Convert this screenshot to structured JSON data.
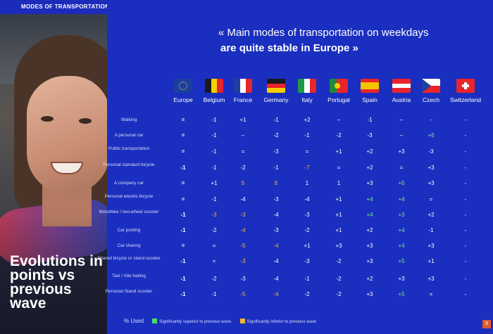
{
  "banner": "MODES OF TRANSPORTATION USED ON WEEKDAYS %",
  "headline": {
    "line1": "« Main modes of transportation on weekdays",
    "line2": "are quite stable in Europe »"
  },
  "side_title": "Evolutions in points vs previous wave",
  "countries": [
    "Europe",
    "Belgium",
    "France",
    "Germany",
    "Italy",
    "Portugal",
    "Spain",
    "Austria",
    "Czech",
    "Switzerland"
  ],
  "rows": [
    {
      "label": "Walking",
      "values": [
        "=",
        "-1",
        "+1",
        "-1",
        "+2",
        "–",
        "-1",
        "–",
        "–",
        "-"
      ]
    },
    {
      "label": "A personal car",
      "values": [
        "=",
        "-1",
        "–",
        "-2",
        "-1",
        "-2",
        "-3",
        "–",
        "+6",
        "-"
      ]
    },
    {
      "label": "Public transportation",
      "values": [
        "=",
        "-1",
        "=",
        "-3",
        "=",
        "+1",
        "+2",
        "+3",
        "-3",
        "-"
      ]
    },
    {
      "label": "Personal standard bicycle",
      "values": [
        "-1",
        "-1",
        "-2",
        "-1",
        "-7",
        "=",
        "+2",
        "=",
        "+3",
        "-"
      ]
    },
    {
      "label": "A company car",
      "values": [
        "=",
        "+1",
        "5",
        "6",
        "1",
        "1",
        "+3",
        "+5",
        "+3",
        "-"
      ]
    },
    {
      "label": "Personal electric bicycle",
      "values": [
        "=",
        "-1",
        "-4",
        "-3",
        "-4",
        "+1",
        "+4",
        "+4",
        "=",
        "-"
      ]
    },
    {
      "label": "Motorbike / two-wheel scooter",
      "values": [
        "-1",
        "-3",
        "-3",
        "-4",
        "-3",
        "+1",
        "+4",
        "+3",
        "+2",
        "-"
      ]
    },
    {
      "label": "Car pooling",
      "values": [
        "-1",
        "-2",
        "-4",
        "-3",
        "-2",
        "+1",
        "+2",
        "+4",
        "-1",
        "-"
      ]
    },
    {
      "label": "Car sharing",
      "values": [
        "=",
        "=",
        "-5",
        "-4",
        "+1",
        "+3",
        "+3",
        "+4",
        "+3",
        "-"
      ]
    },
    {
      "label": "Shared bicycle or stand scooter",
      "values": [
        "-1",
        "=",
        "-3",
        "-4",
        "-3",
        "-2",
        "+3",
        "+5",
        "+1",
        "-"
      ]
    },
    {
      "label": "Taxi / ride-hailing",
      "values": [
        "-1",
        "-2",
        "-3",
        "-4",
        "-1",
        "-2",
        "+2",
        "+3",
        "+3",
        "-"
      ]
    },
    {
      "label": "Personal Stand scooter",
      "values": [
        "-1",
        "-1",
        "-5",
        "-4",
        "-2",
        "-2",
        "+3",
        "+5",
        "=",
        "-"
      ]
    }
  ],
  "colors": [
    [
      "bw",
      "w",
      "w",
      "w",
      "w",
      "w",
      "w",
      "w",
      "g",
      "w"
    ],
    [
      "bw",
      "w",
      "w",
      "w",
      "w",
      "w",
      "w",
      "w",
      "g",
      "w"
    ],
    [
      "bw",
      "w",
      "w",
      "w",
      "w",
      "w",
      "w",
      "w",
      "w",
      "w"
    ],
    [
      "bw",
      "w",
      "w",
      "w",
      "y",
      "w",
      "w",
      "w",
      "w",
      "w"
    ],
    [
      "bw",
      "w",
      "y",
      "y",
      "w",
      "w",
      "w",
      "g",
      "w",
      "w"
    ],
    [
      "bw",
      "w",
      "w",
      "w",
      "w",
      "w",
      "g",
      "g",
      "w",
      "w"
    ],
    [
      "bw",
      "y",
      "y",
      "w",
      "w",
      "w",
      "g",
      "g",
      "w",
      "w"
    ],
    [
      "bw",
      "w",
      "y",
      "w",
      "w",
      "w",
      "w",
      "g",
      "w",
      "w"
    ],
    [
      "bw",
      "w",
      "y",
      "y",
      "w",
      "w",
      "w",
      "g",
      "w",
      "w"
    ],
    [
      "bw",
      "w",
      "y",
      "w",
      "w",
      "w",
      "w",
      "g",
      "w",
      "w"
    ],
    [
      "bw",
      "w",
      "w",
      "w",
      "w",
      "w",
      "w",
      "w",
      "w",
      "w"
    ],
    [
      "bw",
      "w",
      "y",
      "y",
      "w",
      "w",
      "w",
      "g",
      "w",
      "w"
    ]
  ],
  "legend": {
    "used": "% Used",
    "superior": "Significantly superior to previous wave",
    "inferior": "Significantly inferior to previous wave",
    "green": "#4cd964",
    "yellow": "#f2b62f"
  },
  "page_number": "8"
}
